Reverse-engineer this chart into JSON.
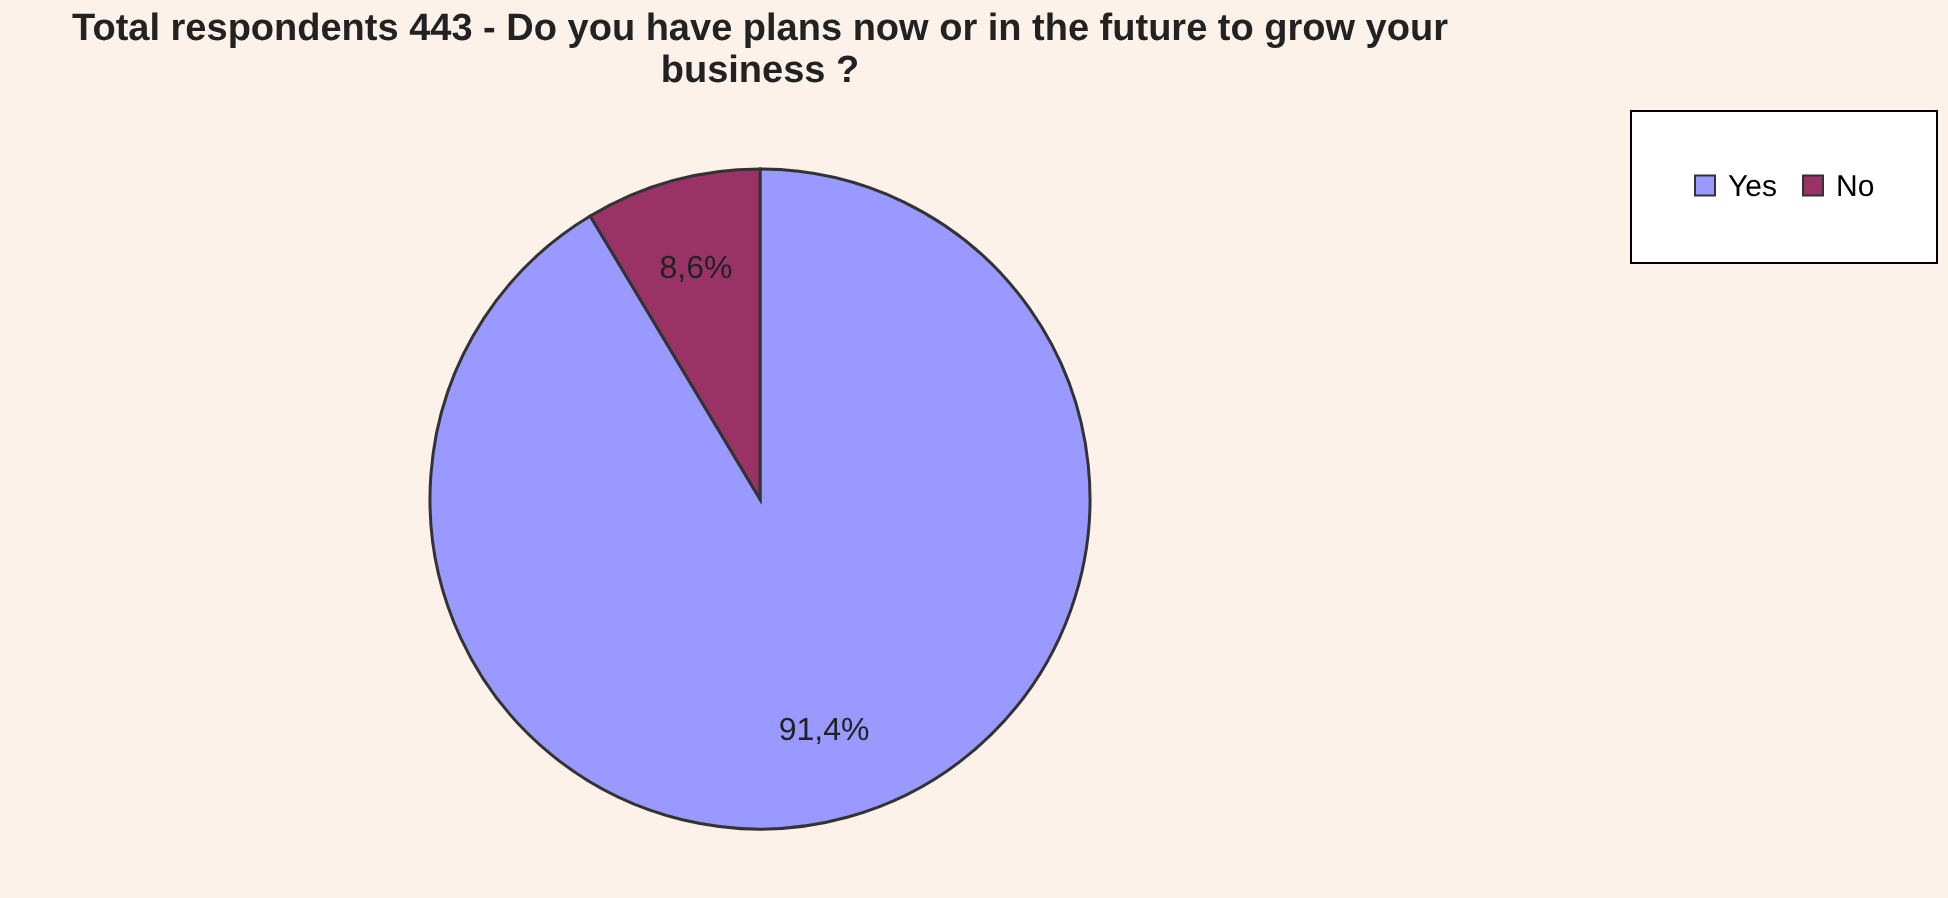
{
  "chart_data": {
    "type": "pie",
    "title": "Total respondents 443 - Do you have plans now or in the future to grow your business ?",
    "categories": [
      "Yes",
      "No"
    ],
    "values": [
      91.4,
      8.6
    ],
    "colors": [
      "#9999ff",
      "#993366"
    ],
    "value_labels": [
      "91,4%",
      "8,6%"
    ],
    "legend": "right"
  }
}
